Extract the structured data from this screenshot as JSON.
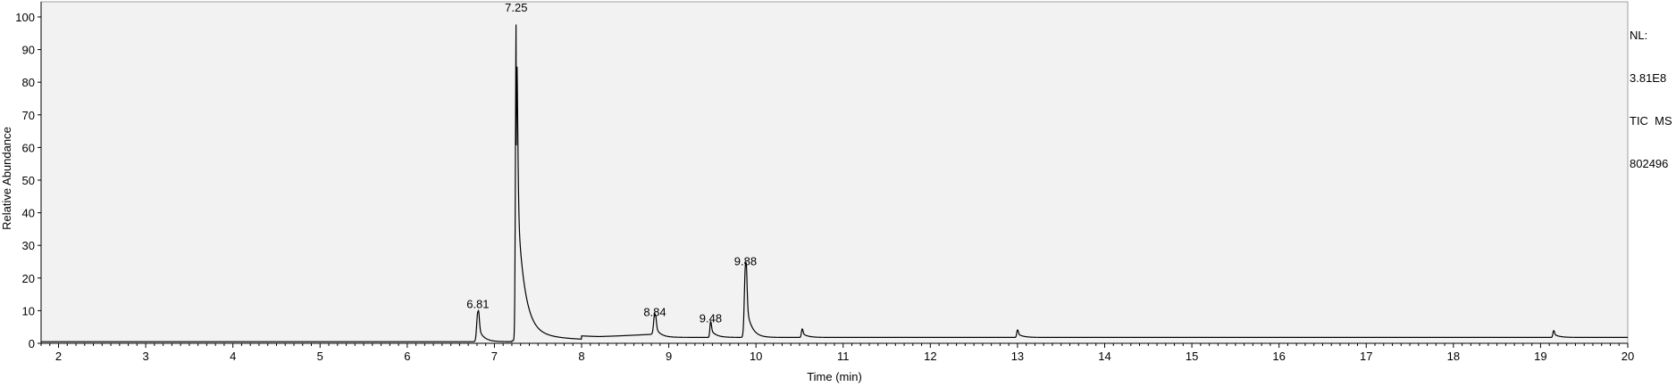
{
  "info_block": {
    "nl_label": "NL:",
    "nl_value": "3.81E8",
    "trace": "TIC  MS",
    "sample": "802496"
  },
  "chart_data": {
    "type": "line",
    "title": "",
    "xlabel": "Time (min)",
    "ylabel": "Relative Abundance",
    "xlim": [
      1.8,
      20
    ],
    "ylim": [
      0,
      100
    ],
    "xticks": [
      2,
      3,
      4,
      5,
      6,
      7,
      8,
      9,
      10,
      11,
      12,
      13,
      14,
      15,
      16,
      17,
      18,
      19,
      20
    ],
    "yticks": [
      0,
      10,
      20,
      30,
      40,
      50,
      60,
      70,
      80,
      90,
      100
    ],
    "grid": false,
    "baseline": 0.5,
    "baseline_after": 1.8,
    "peaks": [
      {
        "rt": 6.81,
        "height": 9.2,
        "label": "6.81"
      },
      {
        "rt": 7.25,
        "height": 100,
        "label": "7.25"
      },
      {
        "rt": 8.84,
        "height": 6.7,
        "label": "8.84"
      },
      {
        "rt": 9.48,
        "height": 4.8,
        "label": "9.48"
      },
      {
        "rt": 9.88,
        "height": 22.3,
        "label": "9.88"
      },
      {
        "rt": 10.53,
        "height": 2.6,
        "label": ""
      },
      {
        "rt": 13.0,
        "height": 2.3,
        "label": ""
      },
      {
        "rt": 19.15,
        "height": 2.1,
        "label": ""
      }
    ],
    "colors": {
      "line": "#000000",
      "axis": "#000000",
      "plot_border": "#a0a0a0",
      "background": "#f2f2f2"
    }
  }
}
